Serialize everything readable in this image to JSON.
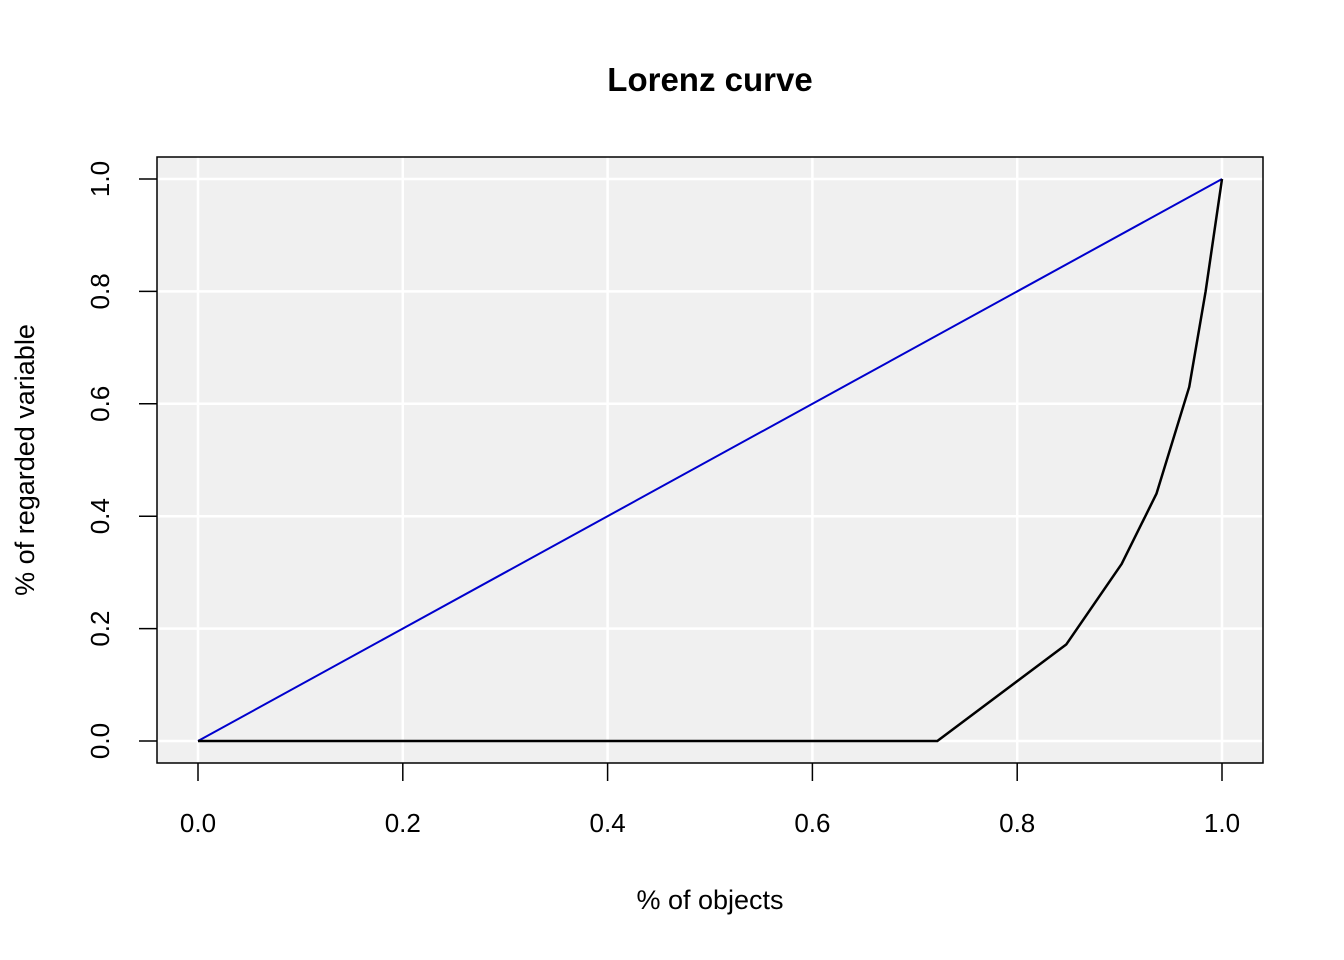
{
  "chart_data": {
    "type": "line",
    "title": "Lorenz curve",
    "xlabel": "% of objects",
    "ylabel": "% of regarded variable",
    "xlim": [
      0,
      1
    ],
    "ylim": [
      0,
      1
    ],
    "x_ticks": [
      "0.0",
      "0.2",
      "0.4",
      "0.6",
      "0.8",
      "1.0"
    ],
    "y_ticks": [
      "0.0",
      "0.2",
      "0.4",
      "0.6",
      "0.8",
      "1.0"
    ],
    "grid": true,
    "colors": {
      "panel_background": "#f0f0f0",
      "grid": "#ffffff",
      "equality_line": "#0000cd",
      "lorenz_curve": "#000000"
    },
    "series": [
      {
        "x": [
          0.0,
          1.0
        ],
        "y": [
          0.0,
          1.0
        ]
      },
      {
        "x": [
          0.0,
          0.722,
          0.848,
          0.902,
          0.936,
          0.968,
          0.984,
          1.0
        ],
        "y": [
          0.0,
          0.0,
          0.172,
          0.315,
          0.44,
          0.63,
          0.8,
          1.0
        ]
      }
    ]
  }
}
